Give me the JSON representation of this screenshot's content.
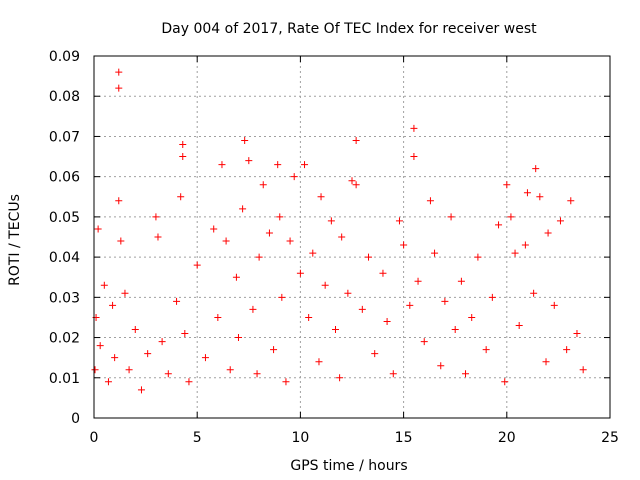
{
  "chart_data": {
    "type": "scatter",
    "title": "Day 004 of 2017, Rate Of TEC Index for receiver west",
    "xlabel": "GPS time / hours",
    "ylabel": "ROTI / TECUs",
    "xlim": [
      0,
      25
    ],
    "ylim": [
      0,
      0.09
    ],
    "xticks": [
      0,
      5,
      10,
      15,
      20,
      25
    ],
    "xtick_labels": [
      "0",
      "5",
      "10",
      "15",
      "20",
      "25"
    ],
    "yticks": [
      0,
      0.01,
      0.02,
      0.03,
      0.04,
      0.05,
      0.06,
      0.07,
      0.08,
      0.09
    ],
    "ytick_labels": [
      "0",
      "0.01",
      "0.02",
      "0.03",
      "0.04",
      "0.05",
      "0.06",
      "0.07",
      "0.08",
      "0.09"
    ],
    "grid": true,
    "marker": "+",
    "marker_color": "#ff0000",
    "series": [
      {
        "x": [
          0.05,
          0.1,
          0.2,
          0.3,
          0.5,
          0.7,
          0.9,
          1.0,
          1.2,
          1.2,
          1.2,
          1.3,
          1.5,
          1.7,
          2.0,
          2.3,
          2.6,
          3.0,
          3.1,
          3.3,
          3.6,
          4.0,
          4.2,
          4.3,
          4.3,
          4.4,
          4.6,
          5.0,
          5.4,
          5.8,
          6.0,
          6.2,
          6.4,
          6.6,
          6.9,
          7.0,
          7.2,
          7.3,
          7.5,
          7.7,
          7.9,
          8.0,
          8.2,
          8.5,
          8.7,
          8.9,
          9.0,
          9.1,
          9.3,
          9.5,
          9.7,
          10.0,
          10.2,
          10.4,
          10.6,
          10.9,
          11.0,
          11.2,
          11.5,
          11.7,
          11.9,
          12.0,
          12.3,
          12.5,
          12.7,
          12.7,
          13.0,
          13.3,
          13.6,
          14.0,
          14.2,
          14.5,
          14.8,
          15.0,
          15.3,
          15.5,
          15.5,
          15.7,
          16.0,
          16.3,
          16.5,
          16.8,
          17.0,
          17.3,
          17.5,
          17.8,
          18.0,
          18.3,
          18.6,
          19.0,
          19.3,
          19.6,
          19.9,
          20.0,
          20.2,
          20.4,
          20.6,
          20.9,
          21.0,
          21.3,
          21.4,
          21.6,
          21.9,
          22.0,
          22.3,
          22.6,
          22.9,
          23.1,
          23.4,
          23.7
        ],
        "y": [
          0.012,
          0.025,
          0.047,
          0.018,
          0.033,
          0.009,
          0.028,
          0.015,
          0.086,
          0.082,
          0.054,
          0.044,
          0.031,
          0.012,
          0.022,
          0.007,
          0.016,
          0.05,
          0.045,
          0.019,
          0.011,
          0.029,
          0.055,
          0.068,
          0.065,
          0.021,
          0.009,
          0.038,
          0.015,
          0.047,
          0.025,
          0.063,
          0.044,
          0.012,
          0.035,
          0.02,
          0.052,
          0.069,
          0.064,
          0.027,
          0.011,
          0.04,
          0.058,
          0.046,
          0.017,
          0.063,
          0.05,
          0.03,
          0.009,
          0.044,
          0.06,
          0.036,
          0.063,
          0.025,
          0.041,
          0.014,
          0.055,
          0.033,
          0.049,
          0.022,
          0.01,
          0.045,
          0.031,
          0.059,
          0.069,
          0.058,
          0.027,
          0.04,
          0.016,
          0.036,
          0.024,
          0.011,
          0.049,
          0.043,
          0.028,
          0.072,
          0.065,
          0.034,
          0.019,
          0.054,
          0.041,
          0.013,
          0.029,
          0.05,
          0.022,
          0.034,
          0.011,
          0.025,
          0.04,
          0.017,
          0.03,
          0.048,
          0.009,
          0.058,
          0.05,
          0.041,
          0.023,
          0.043,
          0.056,
          0.031,
          0.062,
          0.055,
          0.014,
          0.046,
          0.028,
          0.049,
          0.017,
          0.054,
          0.021,
          0.012
        ]
      }
    ]
  }
}
